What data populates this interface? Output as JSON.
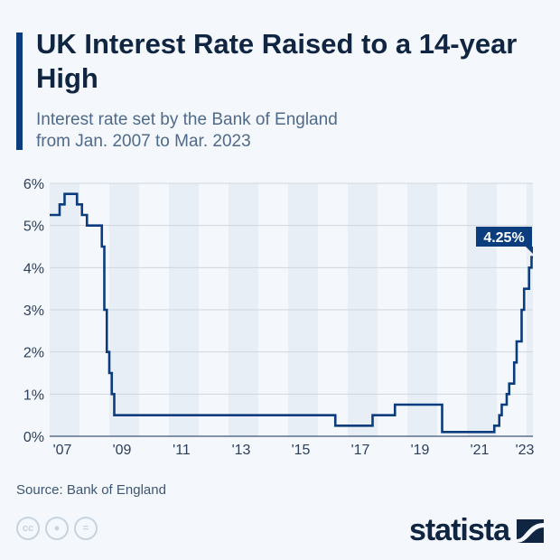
{
  "header": {
    "title": "UK Interest Rate Raised to a 14-year High",
    "subtitle_line1": "Interest rate set by the Bank of England",
    "subtitle_line2": "from Jan. 2007 to Mar. 2023"
  },
  "footer": {
    "source": "Source: Bank of England",
    "brand": "statista",
    "license_icons": [
      "cc-icon",
      "attribution-icon",
      "no-derivatives-icon"
    ]
  },
  "colors": {
    "line": "#0b3c7d",
    "accent": "#0b3c7d",
    "band": "#e8eef6",
    "grid": "#cfd6df",
    "title": "#0f2541"
  },
  "chart_data": {
    "type": "line",
    "step": true,
    "title": "UK Interest Rate Raised to a 14-year High",
    "xlabel": "",
    "ylabel": "",
    "xlim": [
      "2007-01",
      "2023-03"
    ],
    "ylim": [
      0,
      6
    ],
    "yticks": [
      "0%",
      "1%",
      "2%",
      "3%",
      "4%",
      "5%",
      "6%"
    ],
    "xticks": [
      "'07",
      "'09",
      "'11",
      "'13",
      "'15",
      "'17",
      "'19",
      "'21",
      "'23"
    ],
    "grid": true,
    "annotation": "4.25%",
    "points": [
      [
        "2007-01",
        5.25
      ],
      [
        "2007-05",
        5.5
      ],
      [
        "2007-07",
        5.75
      ],
      [
        "2007-12",
        5.5
      ],
      [
        "2008-02",
        5.25
      ],
      [
        "2008-04",
        5.0
      ],
      [
        "2008-10",
        4.5
      ],
      [
        "2008-11",
        3.0
      ],
      [
        "2008-12",
        2.0
      ],
      [
        "2009-01",
        1.5
      ],
      [
        "2009-02",
        1.0
      ],
      [
        "2009-03",
        0.5
      ],
      [
        "2016-08",
        0.25
      ],
      [
        "2017-11",
        0.5
      ],
      [
        "2018-08",
        0.75
      ],
      [
        "2020-03",
        0.1
      ],
      [
        "2021-12",
        0.25
      ],
      [
        "2022-02",
        0.5
      ],
      [
        "2022-03",
        0.75
      ],
      [
        "2022-05",
        1.0
      ],
      [
        "2022-06",
        1.25
      ],
      [
        "2022-08",
        1.75
      ],
      [
        "2022-09",
        2.25
      ],
      [
        "2022-11",
        3.0
      ],
      [
        "2022-12",
        3.5
      ],
      [
        "2023-02",
        4.0
      ],
      [
        "2023-03",
        4.25
      ]
    ]
  }
}
